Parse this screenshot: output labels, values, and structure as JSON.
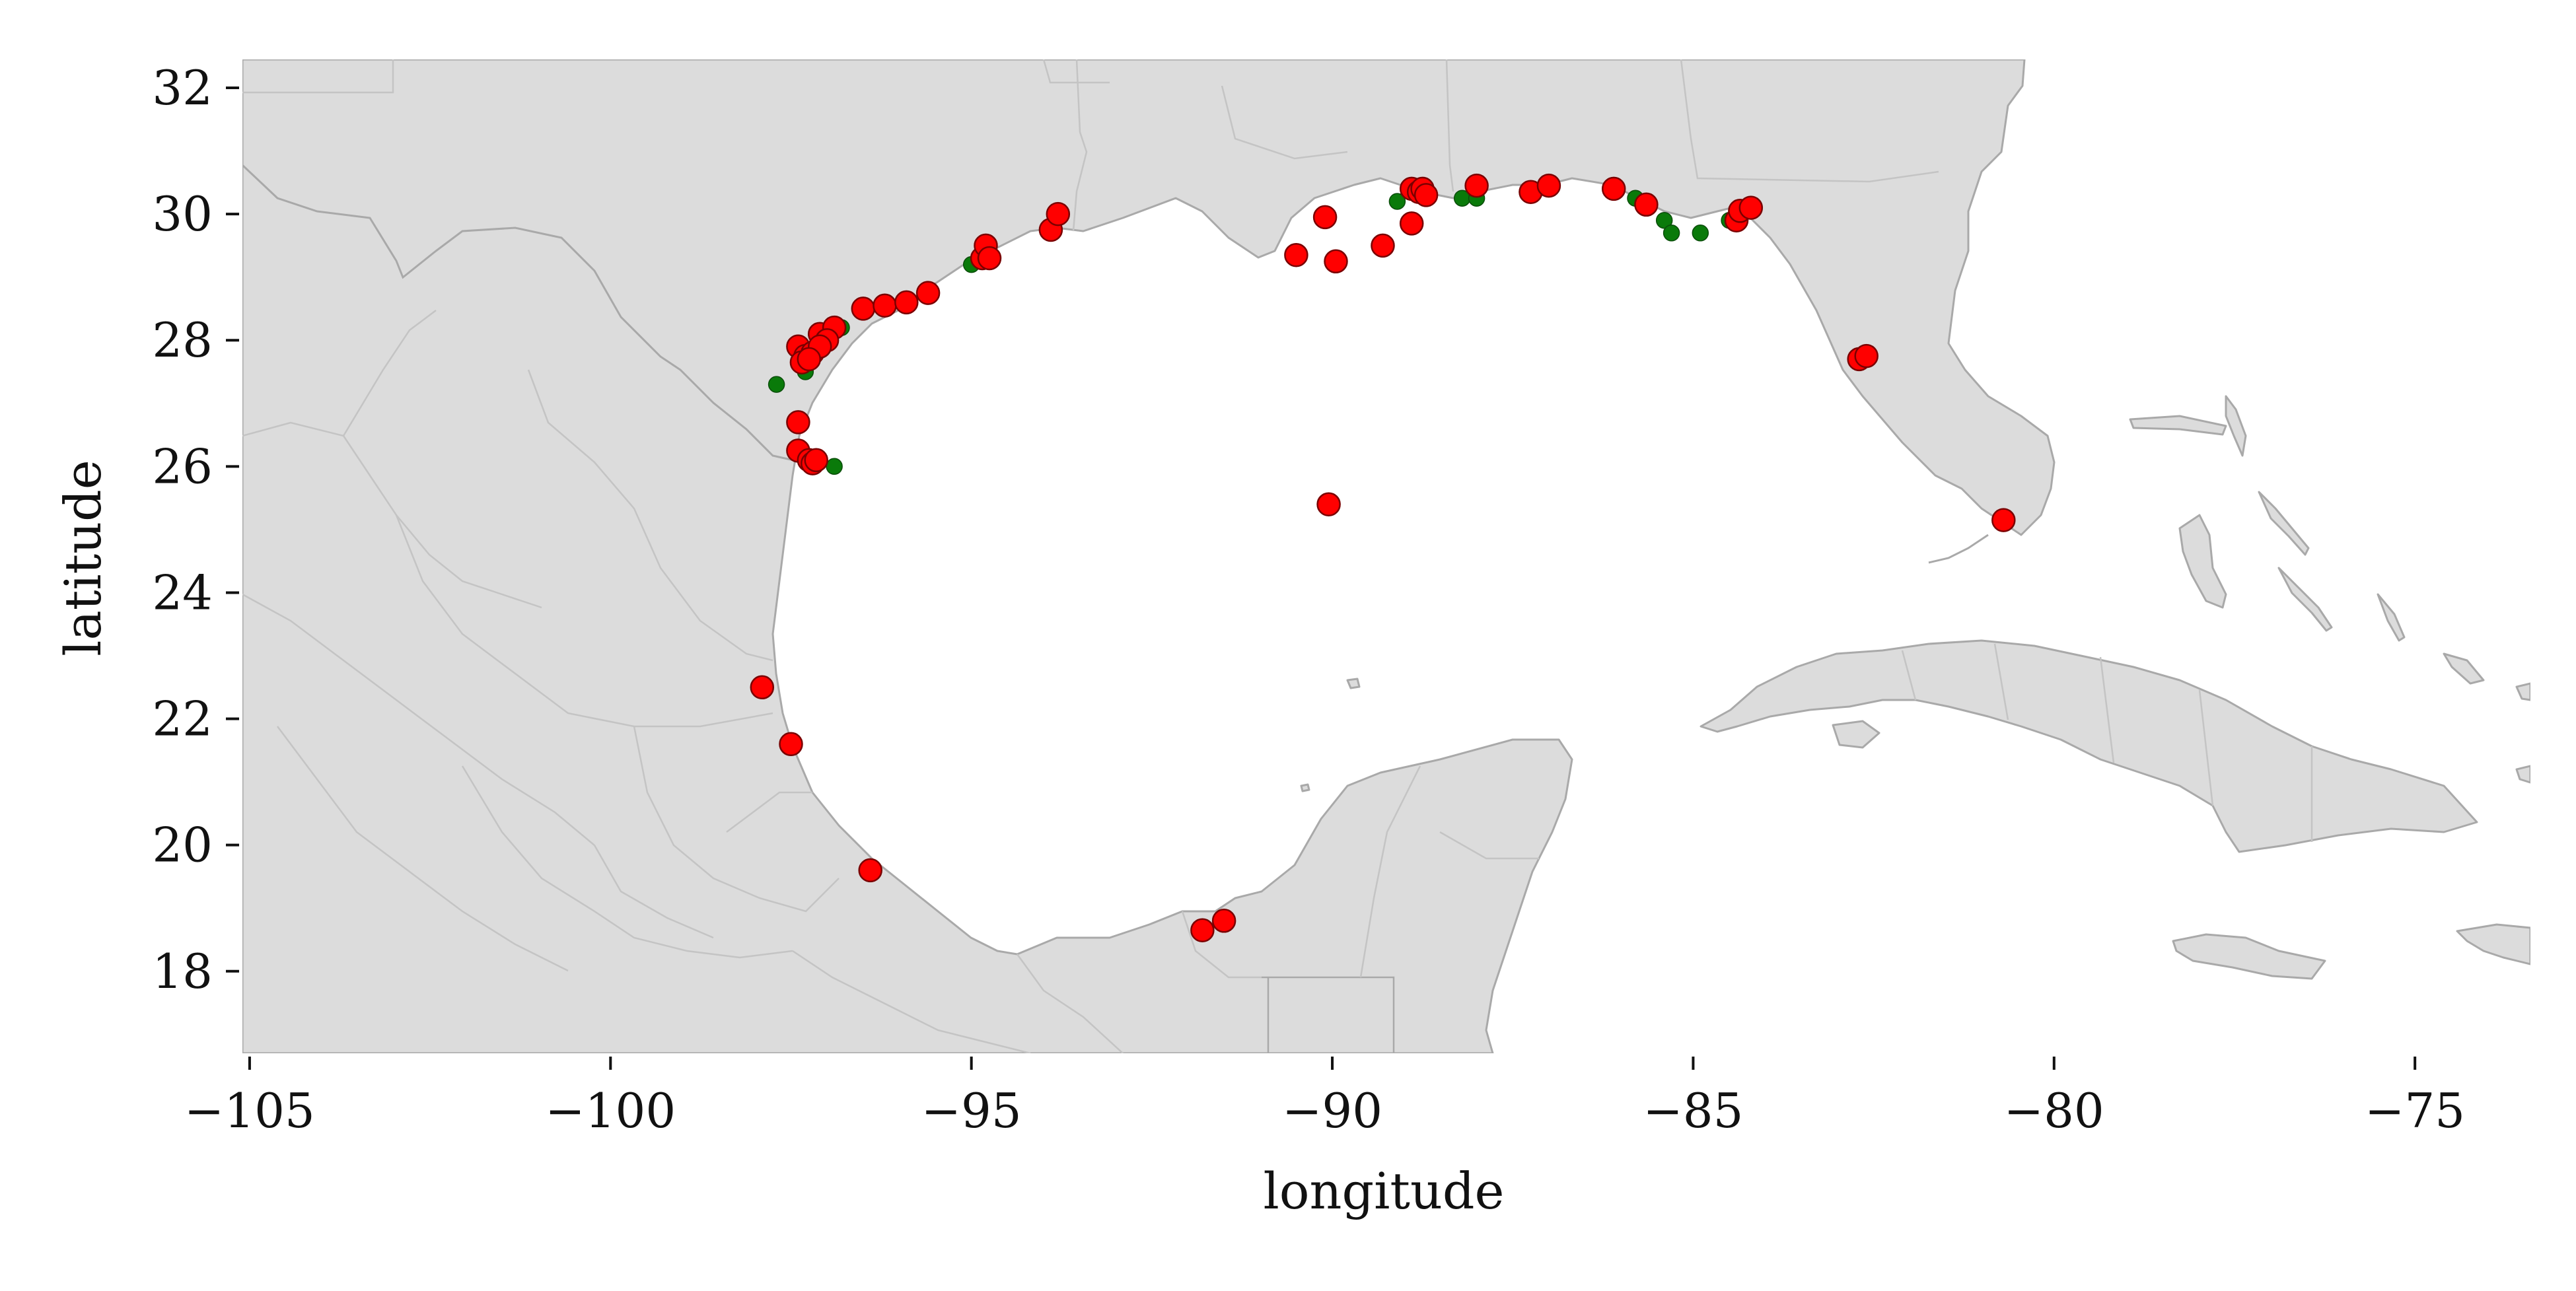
{
  "chart_data": {
    "type": "scatter",
    "xlabel": "longitude",
    "ylabel": "latitude",
    "xlim": [
      -105.1,
      -73.4
    ],
    "ylim": [
      16.7,
      32.45
    ],
    "xticks": [
      -105,
      -100,
      -95,
      -90,
      -85,
      -80,
      -75
    ],
    "yticks": [
      18,
      20,
      22,
      24,
      26,
      28,
      30,
      32
    ],
    "xtick_labels": [
      "−105",
      "−100",
      "−95",
      "−90",
      "−85",
      "−80",
      "−75"
    ],
    "ytick_labels": [
      "18",
      "20",
      "22",
      "24",
      "26",
      "28",
      "30",
      "32"
    ],
    "grid": false,
    "background": "basemap of Mexico, United States Gulf coast and Caribbean islands",
    "colors": {
      "land": "#dcdcdc",
      "coastline": "#a9a9a9",
      "borders": "#c4c4c4",
      "series_green": "#0a7a0a",
      "series_red": "#ff0000",
      "marker_edge": "#7a0000"
    },
    "series": [
      {
        "color": "#0a7a0a",
        "marker_size": "small",
        "points": [
          [
            -97.7,
            27.3
          ],
          [
            -97.3,
            27.5
          ],
          [
            -96.8,
            28.2
          ],
          [
            -96.9,
            26.0
          ],
          [
            -95.0,
            29.2
          ],
          [
            -89.1,
            30.2
          ],
          [
            -88.7,
            30.3
          ],
          [
            -88.2,
            30.25
          ],
          [
            -88.0,
            30.25
          ],
          [
            -87.3,
            30.35
          ],
          [
            -85.8,
            30.25
          ],
          [
            -85.4,
            29.9
          ],
          [
            -85.3,
            29.7
          ],
          [
            -84.9,
            29.7
          ],
          [
            -84.5,
            29.9
          ]
        ]
      },
      {
        "color": "#ff0000",
        "marker_size": "large",
        "points": [
          [
            -97.4,
            27.9
          ],
          [
            -97.3,
            27.75
          ],
          [
            -97.2,
            27.8
          ],
          [
            -97.35,
            27.65
          ],
          [
            -97.1,
            28.1
          ],
          [
            -96.9,
            28.2
          ],
          [
            -97.0,
            28.0
          ],
          [
            -97.1,
            27.9
          ],
          [
            -97.25,
            27.7
          ],
          [
            -96.5,
            28.5
          ],
          [
            -96.2,
            28.55
          ],
          [
            -95.9,
            28.6
          ],
          [
            -95.6,
            28.75
          ],
          [
            -94.85,
            29.3
          ],
          [
            -94.8,
            29.5
          ],
          [
            -94.75,
            29.3
          ],
          [
            -93.9,
            29.75
          ],
          [
            -93.8,
            30.0
          ],
          [
            -97.4,
            26.7
          ],
          [
            -97.4,
            26.25
          ],
          [
            -97.25,
            26.1
          ],
          [
            -97.2,
            26.05
          ],
          [
            -97.15,
            26.1
          ],
          [
            -97.9,
            22.5
          ],
          [
            -97.5,
            21.6
          ],
          [
            -96.4,
            19.6
          ],
          [
            -91.8,
            18.65
          ],
          [
            -91.5,
            18.8
          ],
          [
            -90.05,
            25.4
          ],
          [
            -90.5,
            29.35
          ],
          [
            -90.1,
            29.95
          ],
          [
            -89.95,
            29.25
          ],
          [
            -89.3,
            29.5
          ],
          [
            -88.9,
            30.4
          ],
          [
            -88.8,
            30.35
          ],
          [
            -88.75,
            30.4
          ],
          [
            -88.7,
            30.3
          ],
          [
            -88.9,
            29.85
          ],
          [
            -88.0,
            30.45
          ],
          [
            -87.25,
            30.35
          ],
          [
            -87.0,
            30.45
          ],
          [
            -86.1,
            30.4
          ],
          [
            -85.65,
            30.15
          ],
          [
            -84.4,
            29.9
          ],
          [
            -84.35,
            30.05
          ],
          [
            -84.2,
            30.1
          ],
          [
            -82.7,
            27.7
          ],
          [
            -82.6,
            27.75
          ],
          [
            -80.7,
            25.15
          ]
        ]
      }
    ]
  }
}
